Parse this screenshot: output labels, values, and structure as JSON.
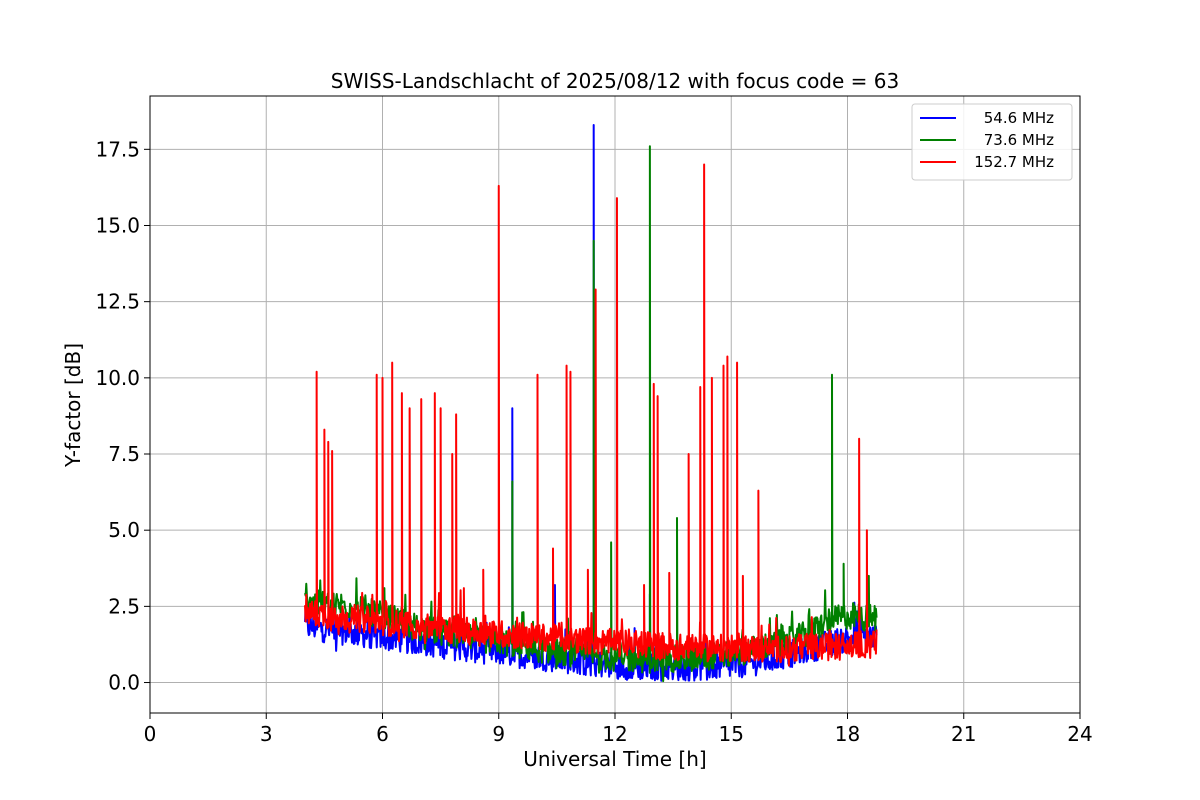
{
  "chart_data": {
    "type": "line",
    "title": "SWISS-Landschlacht of 2025/08/12 with focus code = 63",
    "xlabel": "Universal Time [h]",
    "ylabel": "Y-factor [dB]",
    "xlim": [
      0,
      24
    ],
    "ylim": [
      -1.0,
      19.25
    ],
    "xticks": [
      0,
      3,
      6,
      9,
      12,
      15,
      18,
      21,
      24
    ],
    "xtick_labels": [
      "0",
      "3",
      "6",
      "9",
      "12",
      "15",
      "18",
      "21",
      "24"
    ],
    "yticks": [
      0.0,
      2.5,
      5.0,
      7.5,
      10.0,
      12.5,
      15.0,
      17.5
    ],
    "ytick_labels": [
      "0.0",
      "2.5",
      "5.0",
      "7.5",
      "10.0",
      "12.5",
      "15.0",
      "17.5"
    ],
    "grid": true,
    "legend_position": "top-right",
    "series": [
      {
        "name": "54.6 MHz",
        "color": "#0000ff",
        "baseline": [
          [
            4.0,
            1.85
          ],
          [
            6.0,
            1.5
          ],
          [
            8.0,
            1.15
          ],
          [
            9.0,
            1.0
          ],
          [
            10.0,
            0.85
          ],
          [
            11.0,
            0.7
          ],
          [
            12.0,
            0.55
          ],
          [
            13.0,
            0.5
          ],
          [
            14.0,
            0.5
          ],
          [
            15.0,
            0.55
          ],
          [
            16.0,
            0.75
          ],
          [
            17.0,
            1.1
          ],
          [
            18.0,
            1.45
          ],
          [
            18.75,
            1.55
          ]
        ],
        "spikes": [
          [
            9.35,
            9.0
          ],
          [
            11.45,
            18.3
          ],
          [
            10.45,
            3.2
          ],
          [
            12.9,
            2.9
          ]
        ]
      },
      {
        "name": "73.6 MHz",
        "color": "#008000",
        "baseline": [
          [
            4.0,
            2.6
          ],
          [
            5.0,
            2.55
          ],
          [
            6.0,
            2.2
          ],
          [
            7.0,
            1.8
          ],
          [
            8.0,
            1.5
          ],
          [
            9.0,
            1.35
          ],
          [
            10.0,
            1.1
          ],
          [
            11.0,
            0.95
          ],
          [
            12.0,
            0.8
          ],
          [
            13.0,
            0.75
          ],
          [
            14.0,
            0.8
          ],
          [
            15.0,
            0.95
          ],
          [
            16.0,
            1.2
          ],
          [
            16.8,
            1.5
          ],
          [
            17.5,
            2.0
          ],
          [
            18.0,
            2.2
          ],
          [
            18.75,
            2.1
          ]
        ],
        "spikes": [
          [
            9.35,
            6.6
          ],
          [
            11.45,
            14.5
          ],
          [
            11.9,
            4.6
          ],
          [
            12.9,
            17.6
          ],
          [
            13.6,
            5.4
          ],
          [
            17.6,
            10.1
          ],
          [
            17.9,
            3.9
          ],
          [
            18.55,
            3.5
          ]
        ]
      },
      {
        "name": "152.7 MHz",
        "color": "#ff0000",
        "baseline": [
          [
            4.0,
            2.3
          ],
          [
            6.0,
            2.0
          ],
          [
            8.0,
            1.7
          ],
          [
            10.0,
            1.5
          ],
          [
            12.0,
            1.3
          ],
          [
            14.0,
            1.15
          ],
          [
            16.0,
            1.1
          ],
          [
            18.0,
            1.2
          ],
          [
            18.75,
            1.3
          ]
        ],
        "spikes": [
          [
            4.3,
            10.2
          ],
          [
            4.5,
            8.3
          ],
          [
            4.6,
            7.9
          ],
          [
            4.7,
            7.6
          ],
          [
            5.85,
            10.1
          ],
          [
            6.0,
            10.0
          ],
          [
            6.25,
            10.5
          ],
          [
            6.5,
            9.5
          ],
          [
            6.7,
            9.0
          ],
          [
            7.0,
            9.3
          ],
          [
            7.35,
            9.5
          ],
          [
            7.5,
            9.0
          ],
          [
            7.8,
            7.5
          ],
          [
            7.9,
            8.8
          ],
          [
            8.1,
            3.1
          ],
          [
            8.6,
            3.7
          ],
          [
            9.0,
            16.3
          ],
          [
            10.0,
            10.1
          ],
          [
            10.4,
            4.4
          ],
          [
            10.75,
            10.4
          ],
          [
            10.85,
            10.2
          ],
          [
            11.3,
            3.7
          ],
          [
            11.5,
            12.9
          ],
          [
            12.05,
            15.9
          ],
          [
            12.75,
            3.2
          ],
          [
            13.0,
            9.8
          ],
          [
            13.1,
            9.4
          ],
          [
            13.4,
            3.6
          ],
          [
            13.9,
            7.5
          ],
          [
            14.3,
            17.0
          ],
          [
            14.2,
            9.7
          ],
          [
            14.5,
            10.0
          ],
          [
            14.8,
            10.4
          ],
          [
            14.9,
            10.7
          ],
          [
            15.15,
            10.5
          ],
          [
            15.3,
            3.5
          ],
          [
            15.7,
            6.3
          ],
          [
            18.3,
            8.0
          ],
          [
            18.5,
            5.0
          ]
        ]
      }
    ]
  }
}
